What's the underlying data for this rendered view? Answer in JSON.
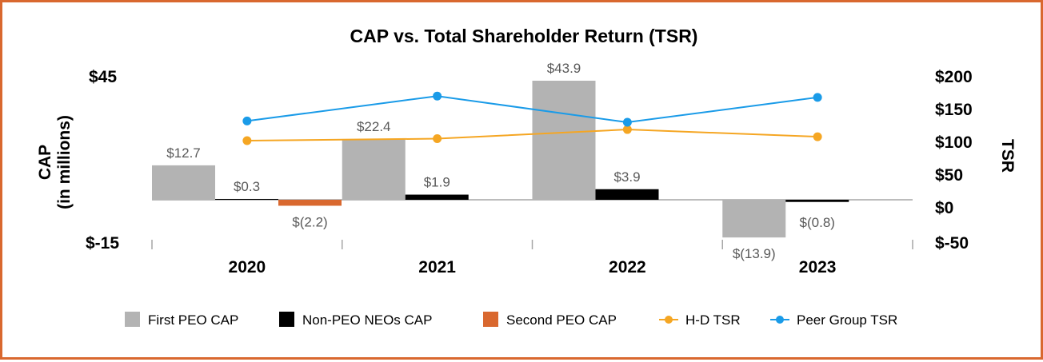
{
  "chart_data": {
    "type": "bar",
    "title": "CAP vs. Total Shareholder Return (TSR)",
    "categories": [
      "2020",
      "2021",
      "2022",
      "2023"
    ],
    "left_axis": {
      "label_line1": "CAP",
      "label_line2": "(in millions)",
      "ylim": [
        -15,
        45
      ],
      "ticks": [
        {
          "value": 45,
          "label": "$45"
        },
        {
          "value": -15,
          "label": "$-15"
        }
      ]
    },
    "right_axis": {
      "label": "TSR",
      "ylim": [
        -50,
        200
      ],
      "ticks": [
        {
          "value": 200,
          "label": "$200"
        },
        {
          "value": 150,
          "label": "$150"
        },
        {
          "value": 100,
          "label": "$100"
        },
        {
          "value": 50,
          "label": "$50"
        },
        {
          "value": 0,
          "label": "$0"
        },
        {
          "value": -50,
          "label": "$-50"
        }
      ]
    },
    "bar_series": [
      {
        "name": "First PEO CAP",
        "color": "#b3b3b3",
        "values": [
          12.7,
          22.4,
          43.9,
          -13.9
        ],
        "labels": [
          "$12.7",
          "$22.4",
          "$43.9",
          "$(13.9)"
        ]
      },
      {
        "name": "Non-PEO NEOs CAP",
        "color": "#000000",
        "values": [
          0.3,
          1.9,
          3.9,
          -0.8
        ],
        "labels": [
          "$0.3",
          "$1.9",
          "$3.9",
          "$(0.8)"
        ]
      },
      {
        "name": "Second PEO CAP",
        "color": "#d9682f",
        "values": [
          -2.2,
          null,
          null,
          null
        ],
        "labels": [
          "$(2.2)",
          null,
          null,
          null
        ]
      }
    ],
    "line_series": [
      {
        "name": "H-D TSR",
        "color": "#f5a623",
        "values": [
          100,
          103,
          117,
          106
        ]
      },
      {
        "name": "Peer Group TSR",
        "color": "#1a9be8",
        "values": [
          130,
          168,
          128,
          166
        ]
      }
    ]
  }
}
